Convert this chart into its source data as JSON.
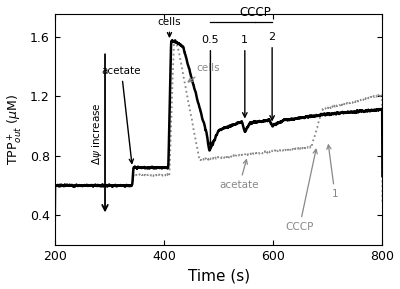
{
  "xlim": [
    200,
    800
  ],
  "ylim": [
    0.2,
    1.75
  ],
  "yticks": [
    0.4,
    0.8,
    1.2,
    1.6
  ],
  "xticks": [
    200,
    400,
    600,
    800
  ],
  "xlabel": "Time (s)",
  "ylabel": "TPP$^+_{out}$ ($\\mu$M)",
  "black_color": "#000000",
  "gray_color": "#888888",
  "acetate_t": 342,
  "cells_t": 410,
  "cccp05_t": 485,
  "cccp1_t": 548,
  "cccp2_t": 598
}
